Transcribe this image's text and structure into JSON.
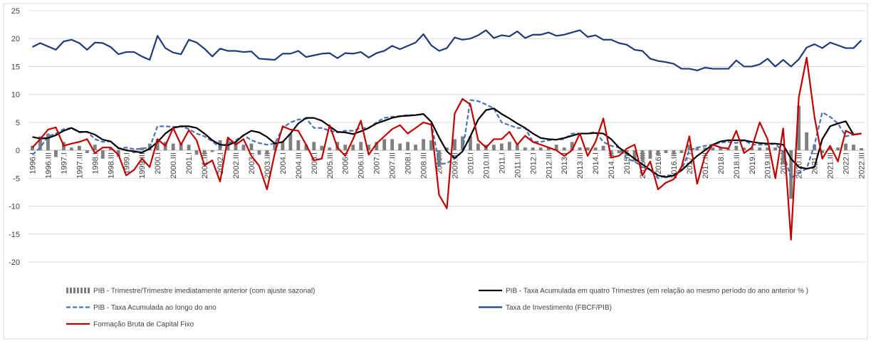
{
  "chart_data": {
    "type": "combo",
    "categories": [
      "1996.I",
      null,
      "1996.III",
      null,
      "1997.I",
      null,
      "1997.III",
      null,
      "1998.I",
      null,
      "1998.III",
      null,
      "1999.I",
      null,
      "1999.III",
      null,
      "2000.I",
      null,
      "2000.III",
      null,
      "2001.I",
      null,
      "2001.III",
      null,
      "2002.I",
      null,
      "2002.III",
      null,
      "2003.I",
      null,
      "2003.III",
      null,
      "2004.I",
      null,
      "2004.III",
      null,
      "2005.I",
      null,
      "2005.III",
      null,
      "2006.I",
      null,
      "2006.III",
      null,
      "2007.I",
      null,
      "2007.III",
      null,
      "2008.I",
      null,
      "2008.III",
      null,
      "2009.I",
      null,
      "2009.III",
      null,
      "2010.I",
      null,
      "2010.III",
      null,
      "2011.I",
      null,
      "2011.III",
      null,
      "2012.I",
      null,
      "2012.III",
      null,
      "2013.I",
      null,
      "2013.III",
      null,
      "2014.I",
      null,
      "2014.III",
      null,
      "2015.I",
      null,
      "2015.III",
      null,
      "2016.I",
      null,
      "2016.III",
      null,
      "2017.I",
      null,
      "2017.III",
      null,
      "2018.I",
      null,
      "2018.III",
      null,
      "2019.I",
      null,
      "2019.III",
      null,
      "2020.I",
      null,
      "2020.III",
      null,
      "2021.I",
      null,
      "2021.III",
      null,
      "2022.I",
      null,
      "2022.III"
    ],
    "series": [
      {
        "name": "PIB - Trimestre/Trimestre imediatamente anterior (com ajuste sazonal)",
        "kind": "bar",
        "color": "#7f7f7f",
        "values": [
          0.8,
          2.5,
          3.0,
          -1.2,
          1.5,
          0.5,
          0.8,
          -0.5,
          1.0,
          -1.5,
          0.5,
          -1.2,
          0.2,
          -0.5,
          0.5,
          1.2,
          2.0,
          1.5,
          1.2,
          1.2,
          1.0,
          -0.8,
          -0.8,
          -0.3,
          1.8,
          2.0,
          1.5,
          1.0,
          1.2,
          -0.8,
          -0.8,
          1.5,
          1.5,
          3.0,
          1.8,
          1.0,
          1.5,
          0.8,
          0.5,
          1.5,
          1.0,
          1.0,
          1.5,
          1.0,
          1.5,
          2.0,
          2.0,
          1.2,
          1.5,
          1.0,
          2.0,
          1.8,
          -3.0,
          0.5,
          2.0,
          2.5,
          2.5,
          1.2,
          1.0,
          1.0,
          1.2,
          1.5,
          1.0,
          0.5,
          0.5,
          0.5,
          0.5,
          1.0,
          0.5,
          1.5,
          0.5,
          0.5,
          0.5,
          0.8,
          -1.0,
          -0.5,
          -1.0,
          -2.0,
          -2.0,
          -1.5,
          -1.0,
          -0.5,
          -0.8,
          -0.5,
          1.0,
          0.5,
          0.5,
          0.5,
          0.5,
          0.2,
          0.8,
          0.5,
          0.5,
          0.5,
          0.5,
          0.5,
          -2.5,
          -8.7,
          8.0,
          3.2,
          1.0,
          -0.5,
          0.5,
          0.5,
          1.2,
          1.0,
          0.4
        ]
      },
      {
        "name": "PIB - Taxa Acumulada em quatro Trimestres (em relação ao  mesmo período do ano anterior % )",
        "kind": "line",
        "color": "#000000",
        "values": [
          2.4,
          2.1,
          2.2,
          2.7,
          3.5,
          4.0,
          3.3,
          3.3,
          2.8,
          1.9,
          1.6,
          0.4,
          0.0,
          -0.2,
          -0.4,
          0.3,
          1.5,
          3.0,
          4.0,
          4.3,
          4.3,
          4.0,
          3.0,
          1.8,
          1.0,
          0.9,
          1.5,
          2.7,
          3.5,
          3.2,
          2.4,
          1.2,
          1.5,
          3.0,
          4.8,
          5.8,
          5.8,
          5.3,
          4.3,
          3.3,
          3.2,
          2.9,
          3.4,
          4.0,
          4.8,
          5.3,
          5.8,
          6.1,
          6.2,
          6.3,
          6.5,
          5.1,
          2.3,
          -0.2,
          -1.4,
          -0.2,
          2.5,
          5.5,
          7.2,
          7.5,
          6.5,
          5.7,
          4.8,
          4.0,
          3.0,
          2.2,
          2.0,
          1.9,
          2.2,
          2.6,
          3.0,
          3.0,
          3.1,
          3.0,
          2.0,
          0.5,
          -0.5,
          -1.5,
          -2.5,
          -3.5,
          -4.5,
          -4.8,
          -4.5,
          -3.6,
          -2.3,
          -1.0,
          0.0,
          1.0,
          1.6,
          1.8,
          1.8,
          1.8,
          1.5,
          1.3,
          1.2,
          1.2,
          1.0,
          -1.5,
          -3.0,
          -3.3,
          -3.0,
          2.0,
          4.3,
          4.8,
          5.2,
          2.8,
          3.0
        ]
      },
      {
        "name": "PIB - Taxa Acumulada ao longo do ano",
        "kind": "line",
        "dashed": true,
        "color": "#4a72b8",
        "values": [
          -0.8,
          0.5,
          2.5,
          3.0,
          3.8,
          4.0,
          3.2,
          3.3,
          2.0,
          1.5,
          1.6,
          0.3,
          0.5,
          0.2,
          0.3,
          0.5,
          4.3,
          4.3,
          4.2,
          4.3,
          3.8,
          3.0,
          2.5,
          1.6,
          0.5,
          1.2,
          1.8,
          2.7,
          1.8,
          1.3,
          1.0,
          1.2,
          4.0,
          5.0,
          5.5,
          5.7,
          4.0,
          4.0,
          3.5,
          3.2,
          3.5,
          3.5,
          4.0,
          4.0,
          5.0,
          5.8,
          6.0,
          6.1,
          6.3,
          6.3,
          6.5,
          5.1,
          -2.5,
          -2.3,
          -1.5,
          -0.2,
          9.0,
          8.8,
          8.2,
          7.5,
          5.0,
          4.5,
          4.0,
          4.0,
          1.5,
          1.5,
          1.8,
          1.9,
          2.0,
          3.0,
          3.0,
          3.0,
          3.3,
          1.5,
          0.8,
          0.5,
          -1.5,
          -2.0,
          -3.0,
          -3.5,
          -5.0,
          -4.5,
          -4.5,
          -3.6,
          0.0,
          0.5,
          0.8,
          1.0,
          1.4,
          1.5,
          1.3,
          1.8,
          1.0,
          1.0,
          1.0,
          1.2,
          -0.3,
          -5.0,
          -4.0,
          -3.3,
          1.0,
          6.8,
          6.0,
          4.8,
          2.5,
          2.8,
          3.0
        ]
      },
      {
        "name": "Taxa de Investimento (FBCF/PIB)",
        "kind": "line",
        "color": "#1f3a7a",
        "values": [
          18.5,
          19.2,
          18.6,
          18.0,
          19.5,
          19.8,
          19.2,
          18.0,
          19.3,
          19.2,
          18.5,
          17.2,
          17.6,
          17.6,
          16.8,
          16.2,
          20.5,
          18.3,
          17.5,
          17.2,
          19.8,
          19.3,
          18.2,
          16.8,
          18.2,
          17.8,
          17.8,
          17.6,
          17.7,
          16.4,
          16.3,
          16.2,
          17.3,
          17.3,
          17.8,
          16.7,
          17.0,
          17.3,
          17.4,
          16.5,
          17.4,
          17.3,
          17.6,
          16.6,
          17.4,
          17.8,
          18.7,
          18.1,
          18.7,
          19.3,
          20.8,
          18.8,
          17.8,
          18.3,
          20.2,
          19.8,
          20.0,
          20.6,
          21.5,
          20.1,
          20.6,
          20.4,
          21.3,
          20.1,
          20.7,
          20.7,
          21.1,
          20.5,
          20.7,
          21.1,
          21.5,
          20.3,
          20.6,
          19.8,
          19.8,
          19.2,
          18.9,
          18.0,
          17.8,
          16.4,
          16.0,
          15.8,
          15.5,
          14.6,
          14.6,
          14.3,
          14.8,
          14.6,
          14.6,
          14.6,
          16.1,
          15.0,
          15.0,
          15.4,
          16.4,
          15.0,
          16.2,
          15.0,
          16.3,
          18.4,
          19.0,
          18.3,
          19.3,
          18.8,
          18.3,
          18.3,
          19.7
        ]
      },
      {
        "name": "Formação Bruta de Capital Fixo",
        "kind": "line",
        "color": "#c00000",
        "values": [
          0.5,
          2.0,
          3.7,
          4.1,
          0.8,
          1.2,
          1.5,
          2.0,
          -0.5,
          0.5,
          0.5,
          -0.8,
          -4.5,
          -3.5,
          -1.5,
          -3.0,
          2.0,
          0.8,
          4.0,
          1.0,
          3.6,
          1.8,
          -2.7,
          -1.8,
          -5.6,
          2.3,
          1.0,
          2.0,
          -1.0,
          -2.8,
          -7.0,
          -0.5,
          4.3,
          3.7,
          3.5,
          1.0,
          -1.8,
          -1.5,
          4.5,
          0.5,
          -1.0,
          2.0,
          5.3,
          -0.8,
          1.2,
          2.5,
          3.8,
          4.5,
          3.0,
          4.0,
          5.0,
          4.6,
          -8.0,
          -10.4,
          6.6,
          9.2,
          8.2,
          1.8,
          0.5,
          2.0,
          2.0,
          3.3,
          1.0,
          2.6,
          1.5,
          1.0,
          0.5,
          0.0,
          -1.0,
          0.0,
          3.0,
          -1.0,
          1.5,
          5.7,
          -1.3,
          -1.0,
          0.3,
          1.0,
          -4.5,
          -2.0,
          -7.0,
          -5.8,
          -5.2,
          -3.0,
          2.5,
          -6.0,
          -1.0,
          1.0,
          0.5,
          0.3,
          3.5,
          -0.5,
          0.5,
          5.0,
          2.0,
          -5.0,
          3.9,
          -16.0,
          9.5,
          16.6,
          6.0,
          -1.5,
          0.8,
          -2.0,
          3.5,
          2.8,
          3.0
        ]
      }
    ],
    "ylim": [
      -20,
      25
    ],
    "yticks": [
      -20,
      -15,
      -10,
      -5,
      0,
      5,
      10,
      15,
      20,
      25
    ],
    "grid": true
  }
}
